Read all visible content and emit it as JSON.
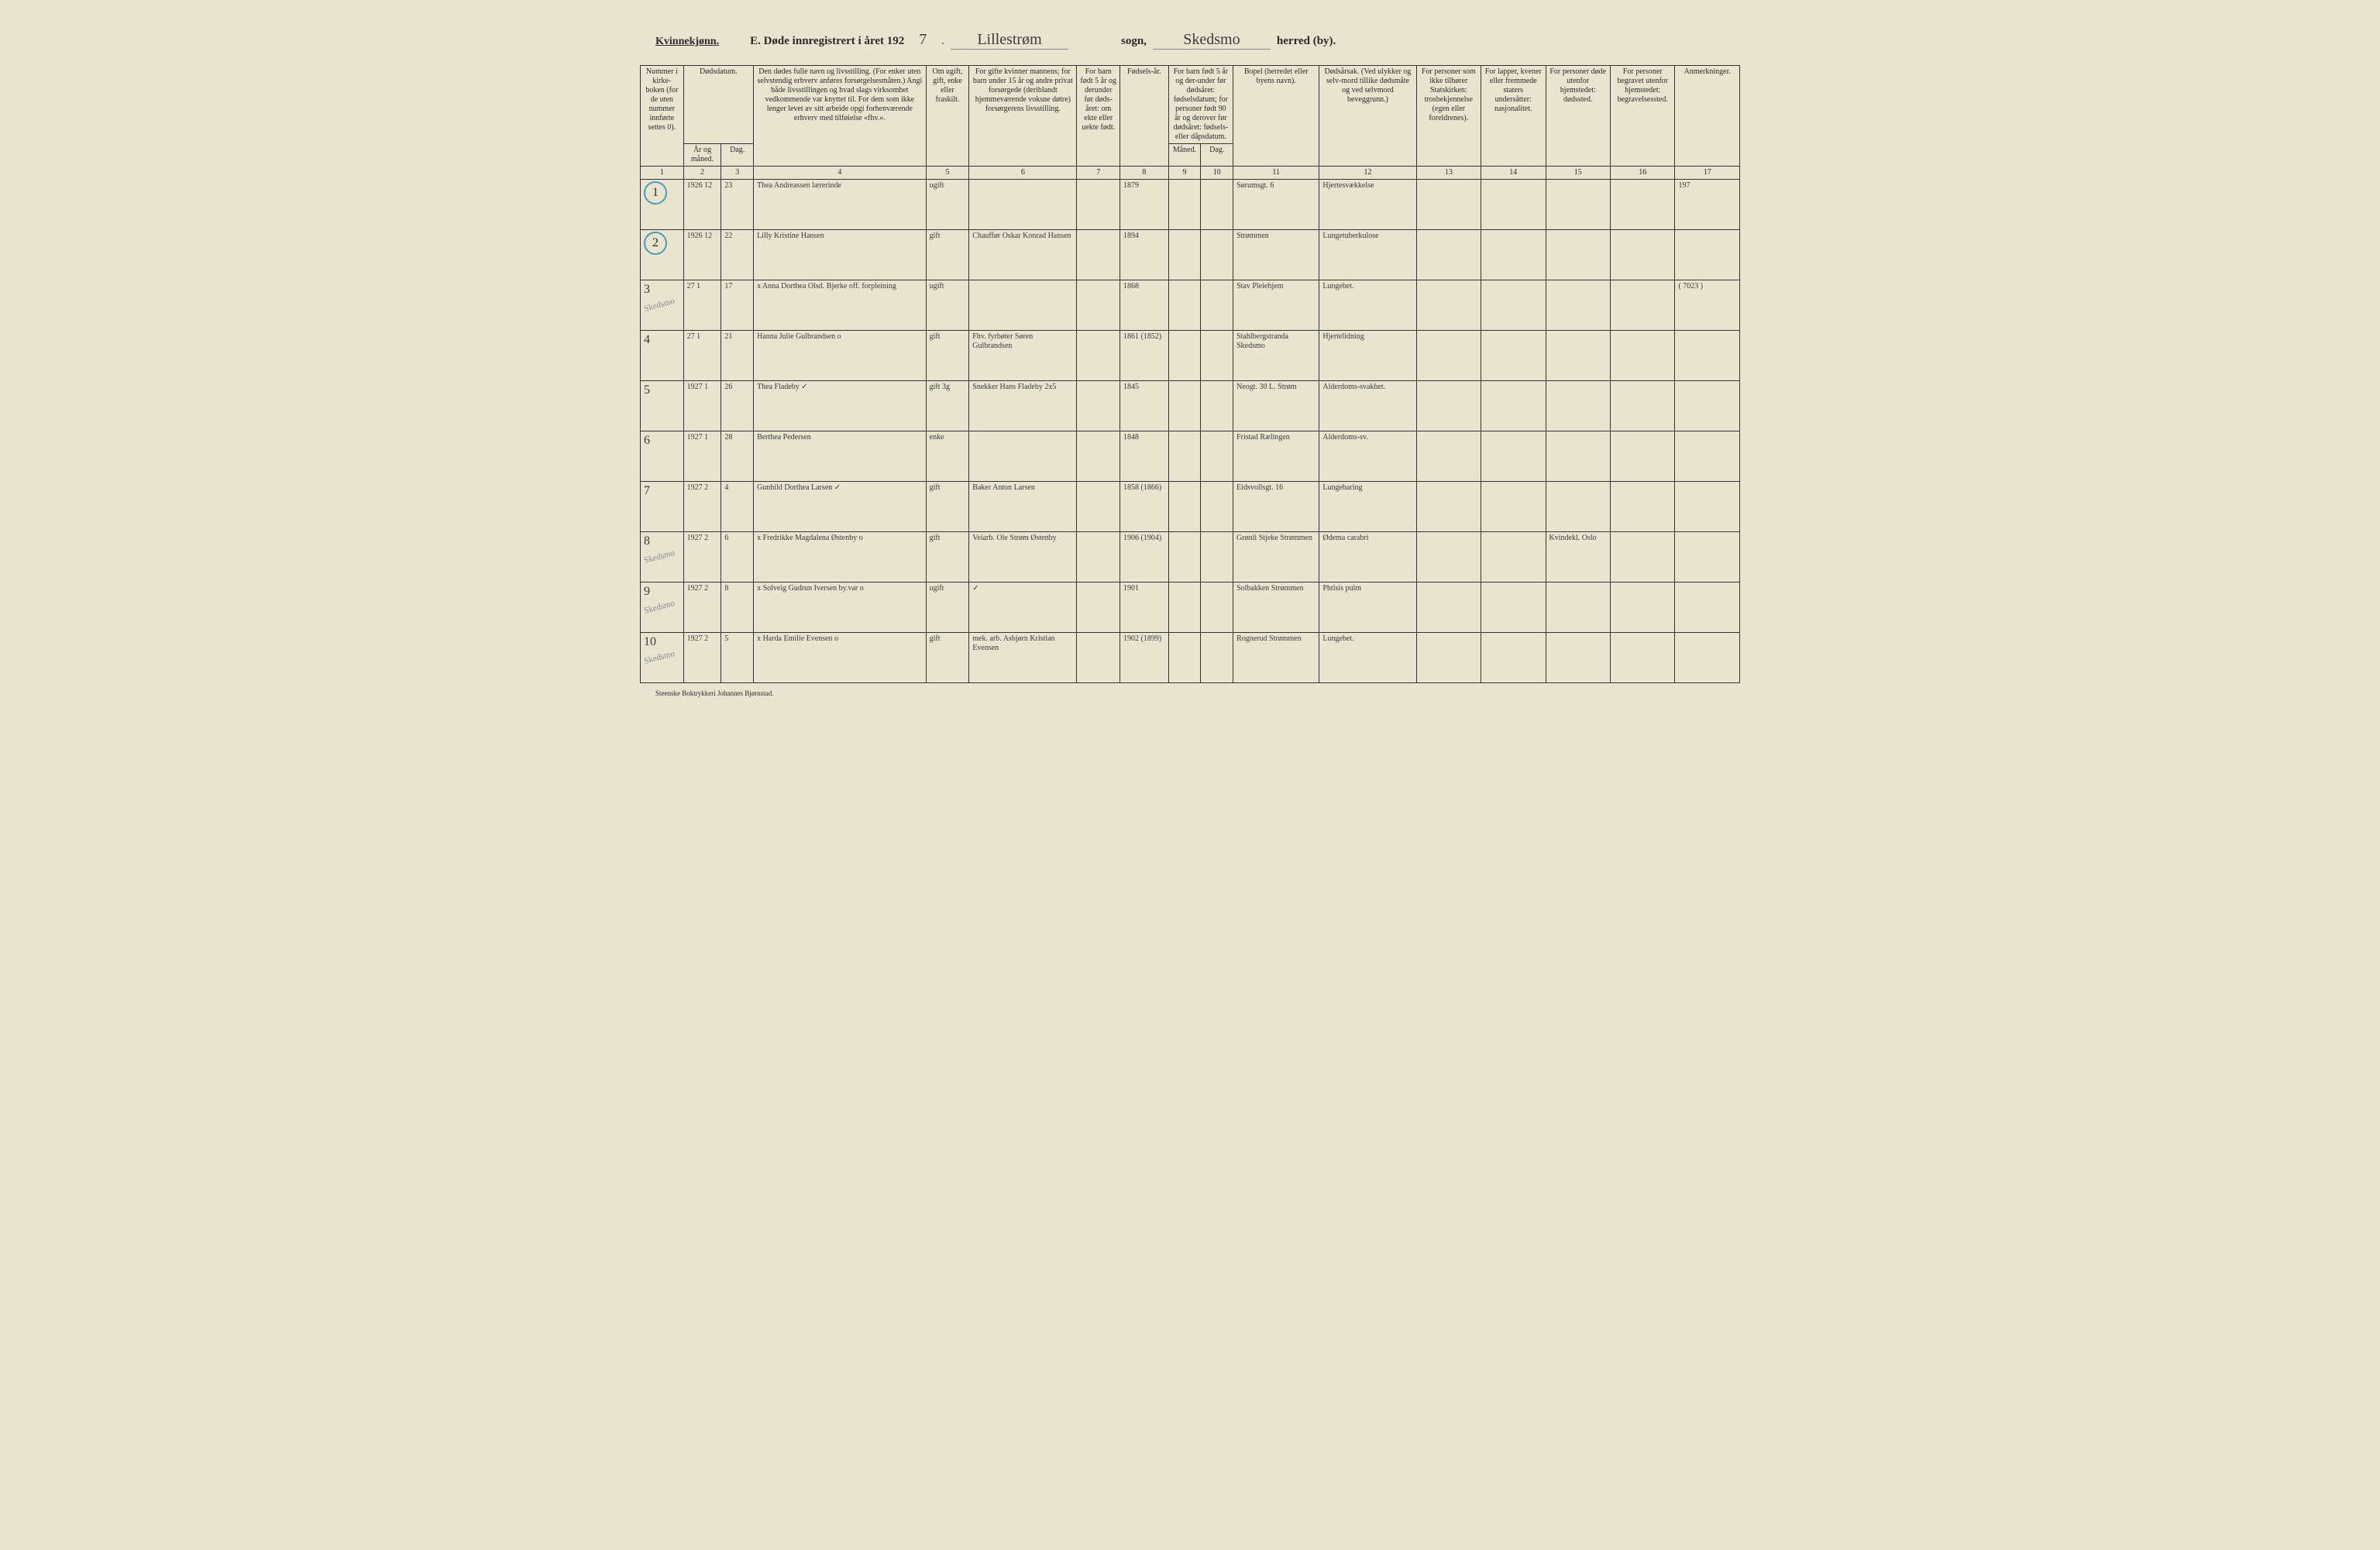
{
  "header": {
    "gender": "Kvinnekjønn.",
    "title_prefix": "E.  Døde innregistrert i året 192",
    "year_suffix": "7",
    "period": ".",
    "parish": "Lillestrøm",
    "sogn_label": "sogn,",
    "district": "Skedsmo",
    "herred_label": "herred (by)."
  },
  "footer": "Steenske Boktrykkeri Johannes Bjørnstad.",
  "columns": {
    "c1": "Nummer i kirke-boken (for de uten nummer innførte settes 0).",
    "c2": "Dødsdatum.",
    "c2a": "År og måned.",
    "c2b": "Dag.",
    "c3": "Den dødes fulle navn og livsstilling. (For enker uten selvstendig erhverv anføres forsørgelsesmåten.) Angi både livsstillingen og hvad slags virksomhet vedkommende var knyttet til. For dem som ikke lenger levet av sitt arbeide opgi forhenværende erhverv med tilføielse «fhv.».",
    "c4": "Om ugift, gift, enke eller fraskilt.",
    "c5": "For gifte kvinner mannens; for barn under 15 år og andre privat forsørgede (deriblandt hjemmeværende voksne døtre) forsørgerens livsstilling.",
    "c6": "For barn født 5 år og derunder før døds-året: om ekte eller uekte født.",
    "c7": "Fødsels-år.",
    "c8": "For barn født 5 år og der-under før dødsåret: fødselsdatum; for personer født 90 år og derover før dødsåret: fødsels- eller dåpsdatum.",
    "c8a": "Måned.",
    "c8b": "Dag.",
    "c9": "Bopel (herredet eller byens navn).",
    "c10": "Dødsårsak. (Ved ulykker og selv-mord tillike dødsmåte og ved selvmord beveggrunn.)",
    "c11": "For personer som ikke tilhører Statskirken: trosbekjennelse (egen eller foreldrenes).",
    "c12": "For lapper, kvener eller fremmede staters undersåtter: nasjonalitet.",
    "c13": "For personer døde utenfor hjemstedet: dødssted.",
    "c14": "For personer begravet utenfor hjemstedet: begravelsessted.",
    "c15": "Anmerkninger."
  },
  "col_numbers": [
    "1",
    "2",
    "3",
    "4",
    "5",
    "6",
    "7",
    "8",
    "9",
    "10",
    "11",
    "12",
    "13",
    "14",
    "15",
    "16",
    "17"
  ],
  "rows": [
    {
      "num": "1",
      "circled": true,
      "year_month": "1926 12",
      "day": "23",
      "name": "Thea Andreassen  lærerinde",
      "status": "ugift",
      "spouse": "",
      "birth_year": "1879",
      "residence": "Sørumsgt. 6",
      "cause": "Hjertesvækkelse",
      "note": "197"
    },
    {
      "num": "2",
      "circled": true,
      "year_month": "1926 12",
      "day": "22",
      "name": "Lilly Kristine Hansen",
      "status": "gift",
      "spouse": "Chauffør Oskar Konrad Hansen",
      "birth_year": "1894",
      "residence": "Strømmen",
      "cause": "Lungetuberkulose",
      "note": ""
    },
    {
      "num": "3",
      "circled": false,
      "year_month": "27 1",
      "day": "17",
      "name": "x  Anna Dorthea Olsd. Bjerke  off. forpleining",
      "status": "ugift",
      "spouse": "",
      "birth_year": "1868",
      "residence": "Stav Pleiehjem",
      "cause": "Lungebet.",
      "note": "( 7023 )",
      "side": "Skedsmo"
    },
    {
      "num": "4",
      "circled": false,
      "year_month": "27 1",
      "day": "21",
      "name": "Hanna Julie Gulbrandsen  o",
      "status": "gift",
      "spouse": "Fhv. fyrbøter Søren Gulbrandsen",
      "birth_year": "1861 (1852)",
      "residence": "Stahlbergstranda Skedsmo",
      "cause": "Hjertelidning",
      "note": ""
    },
    {
      "num": "5",
      "circled": false,
      "year_month": "1927 1",
      "day": "26",
      "name": "Thea Fladeby   ✓",
      "status": "gift  3g",
      "spouse": "Snekker Hans Fladeby  2x5",
      "birth_year": "1845",
      "residence": "Neogt. 30 L. Strøm",
      "cause": "Alderdoms-svakhet.",
      "note": ""
    },
    {
      "num": "6",
      "circled": false,
      "year_month": "1927 1",
      "day": "28",
      "name": "Berthea Pedersen",
      "status": "enke",
      "spouse": "",
      "birth_year": "1848",
      "residence": "Fristad Rælingen",
      "cause": "Alderdoms-sv.",
      "note": ""
    },
    {
      "num": "7",
      "circled": false,
      "year_month": "1927 2",
      "day": "4",
      "name": "Gunhild Dorthea Larsen  ✓",
      "status": "gift",
      "spouse": "Baker Anton Larsen",
      "birth_year": "1858 (1866)",
      "residence": "Eidsvollsgt. 16",
      "cause": "Lungebaring",
      "note": ""
    },
    {
      "num": "8",
      "circled": false,
      "year_month": "1927 2",
      "day": "6",
      "name": "x Fredrikke Magdalena Østenby  o",
      "status": "gift",
      "spouse": "Veiarb. Ole Strøm Østenby",
      "birth_year": "1906 (1904)",
      "residence": "Grønli Stjeke Strømmen",
      "cause": "Ødema carabri",
      "note": "",
      "burial": "Kvindekl. Oslo",
      "side": "Skedsmo"
    },
    {
      "num": "9",
      "circled": false,
      "year_month": "1927 2",
      "day": "8",
      "name": "x Solveig Gudrun Iversen by.var  o",
      "status": "ugift",
      "spouse": "✓",
      "birth_year": "1901",
      "residence": "Solbakken Strømmen",
      "cause": "Phtisis pulm",
      "note": "",
      "side": "Skedsmo"
    },
    {
      "num": "10",
      "circled": false,
      "year_month": "1927 2",
      "day": "5",
      "name": "x Harda Emilie Evensen  o",
      "status": "gift",
      "spouse": "mek. arb. Asbjørn Kristian Evensen",
      "birth_year": "1902 (1899)",
      "residence": "Rognerud Strømmen",
      "cause": "Lungebet.",
      "note": "",
      "side": "Skedsmo"
    }
  ],
  "col_widths": {
    "c1": "4%",
    "c2a": "3.5%",
    "c2b": "3%",
    "c3": "16%",
    "c4": "4%",
    "c5": "10%",
    "c6": "4%",
    "c7": "4.5%",
    "c8a": "3%",
    "c8b": "3%",
    "c9": "8%",
    "c10": "9%",
    "c11": "6%",
    "c12": "6%",
    "c13": "6%",
    "c14": "6%",
    "c15": "6%"
  }
}
